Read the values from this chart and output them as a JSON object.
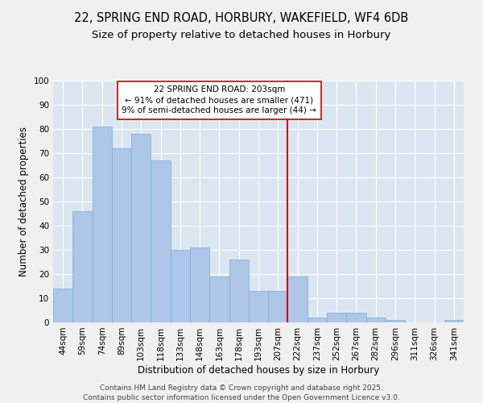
{
  "title1": "22, SPRING END ROAD, HORBURY, WAKEFIELD, WF4 6DB",
  "title2": "Size of property relative to detached houses in Horbury",
  "xlabel": "Distribution of detached houses by size in Horbury",
  "ylabel": "Number of detached properties",
  "categories": [
    "44sqm",
    "59sqm",
    "74sqm",
    "89sqm",
    "103sqm",
    "118sqm",
    "133sqm",
    "148sqm",
    "163sqm",
    "178sqm",
    "193sqm",
    "207sqm",
    "222sqm",
    "237sqm",
    "252sqm",
    "267sqm",
    "282sqm",
    "296sqm",
    "311sqm",
    "326sqm",
    "341sqm"
  ],
  "values": [
    14,
    46,
    81,
    72,
    78,
    67,
    30,
    31,
    19,
    26,
    13,
    13,
    19,
    2,
    4,
    4,
    2,
    1,
    0,
    0,
    1
  ],
  "bar_color": "#aec6e8",
  "bar_edge_color": "#7aafd4",
  "vline_x_idx": 11.5,
  "vline_color": "#cc0000",
  "annotation_text": "22 SPRING END ROAD: 203sqm\n← 91% of detached houses are smaller (471)\n9% of semi-detached houses are larger (44) →",
  "annotation_box_color": "#ffffff",
  "annotation_box_edge": "#cc0000",
  "ylim": [
    0,
    100
  ],
  "yticks": [
    0,
    10,
    20,
    30,
    40,
    50,
    60,
    70,
    80,
    90,
    100
  ],
  "background_color": "#dce6f0",
  "fig_background": "#f0f0f0",
  "footer": "Contains HM Land Registry data © Crown copyright and database right 2025.\nContains public sector information licensed under the Open Government Licence v3.0.",
  "title_fontsize": 10.5,
  "subtitle_fontsize": 9.5,
  "label_fontsize": 8.5,
  "tick_fontsize": 7.5,
  "footer_fontsize": 6.5,
  "annot_fontsize": 7.5
}
